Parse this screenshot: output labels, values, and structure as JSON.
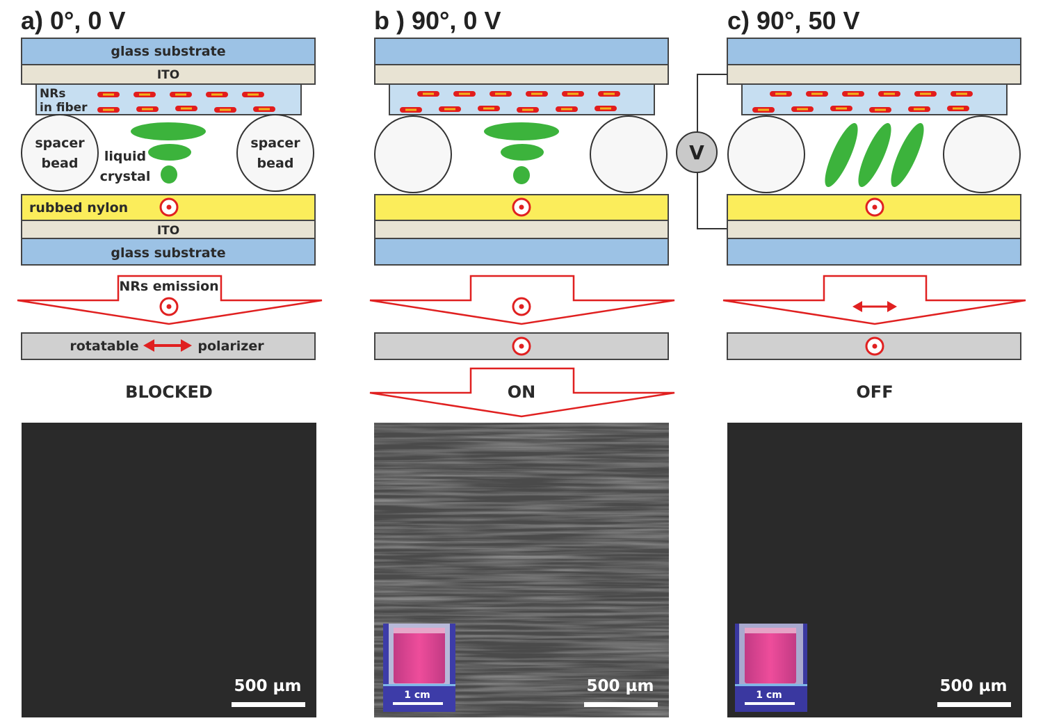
{
  "panels": [
    {
      "title": "a) 0°, 0 V",
      "top_glass_label": "glass substrate",
      "top_ito_label": "ITO",
      "fiber_label_line1": "NRs",
      "fiber_label_line2": "in fiber",
      "spacer_left_line1": "spacer",
      "spacer_left_line2": "bead",
      "spacer_right_line1": "spacer",
      "spacer_right_line2": "bead",
      "lc_label_line1": "liquid",
      "lc_label_line2": "crystal",
      "nylon_label": "rubbed nylon",
      "bottom_ito_label": "ITO",
      "bottom_glass_label": "glass substrate",
      "emission_label": "NRs emission",
      "polarizer_left_label": "rotatable",
      "polarizer_right_label": "polarizer",
      "state": "BLOCKED",
      "scale_bar": "500 µm"
    },
    {
      "title": "b ) 90°, 0 V",
      "state": "ON",
      "scale_bar": "500 µm",
      "inset_scale": "1 cm"
    },
    {
      "title": "c) 90°, 50 V",
      "voltage_symbol": "V",
      "state": "OFF",
      "scale_bar": "500 µm",
      "inset_scale": "1 cm"
    }
  ],
  "colors": {
    "glass": "#9cc2e5",
    "ito": "#e8e3d3",
    "nylon": "#fbed5b",
    "fiber": "#c6def1",
    "nanorod": "#e21d1d",
    "nanorod_core": "#f2b51a",
    "liquid_crystal": "#3cb33c",
    "arrow": "#e02020",
    "polarizer": "#d0d0d0",
    "micrograph_dark": "#282828",
    "micrograph_on": "#4a4a4a"
  }
}
